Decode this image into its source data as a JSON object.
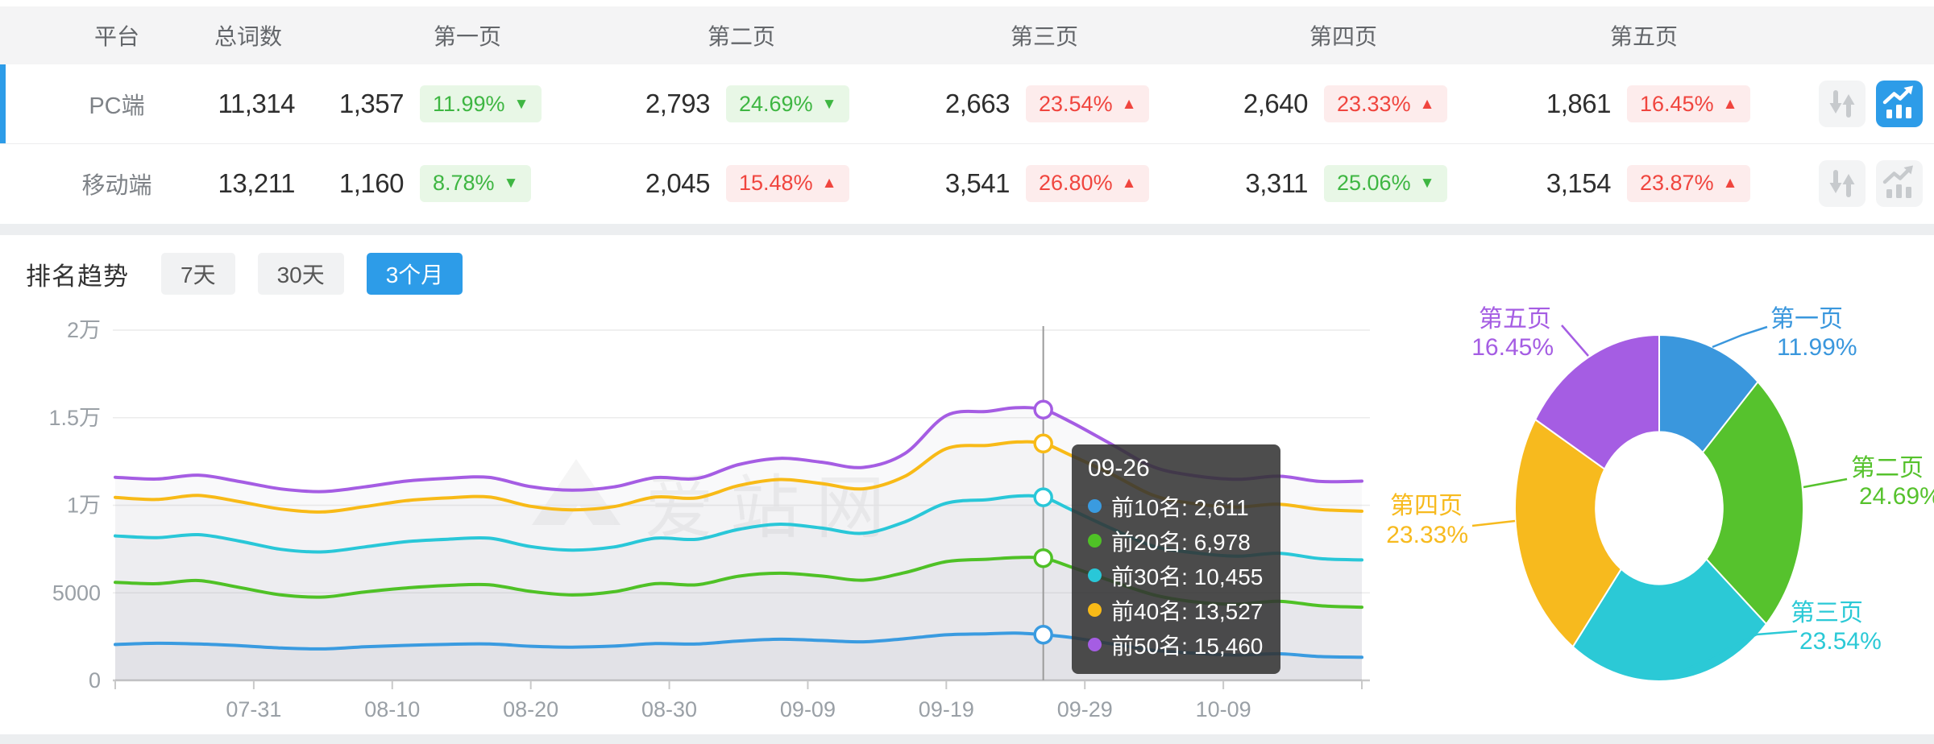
{
  "colors": {
    "accent_blue": "#2d9ce8",
    "up_red": "#f0453e",
    "up_red_bg": "#fdecec",
    "down_green": "#3eb642",
    "down_green_bg": "#e8f7e6",
    "grid_line": "#ececec",
    "axis_line": "#c9c9c9",
    "axis_text": "#9aa0a6",
    "tooltip_bg": "rgba(50,50,50,0.87)"
  },
  "table": {
    "columns": [
      "平台",
      "总词数",
      "第一页",
      "第二页",
      "第三页",
      "第四页",
      "第五页"
    ],
    "icon_buttons": [
      "sort-button",
      "chart-button"
    ],
    "rows": [
      {
        "platform": "PC端",
        "total": "11,314",
        "active": true,
        "pages": [
          {
            "count": "1,357",
            "pct": "11.99%",
            "dir": "down"
          },
          {
            "count": "2,793",
            "pct": "24.69%",
            "dir": "down"
          },
          {
            "count": "2,663",
            "pct": "23.54%",
            "dir": "up"
          },
          {
            "count": "2,640",
            "pct": "23.33%",
            "dir": "up"
          },
          {
            "count": "1,861",
            "pct": "16.45%",
            "dir": "up"
          }
        ]
      },
      {
        "platform": "移动端",
        "total": "13,211",
        "active": false,
        "pages": [
          {
            "count": "1,160",
            "pct": "8.78%",
            "dir": "down"
          },
          {
            "count": "2,045",
            "pct": "15.48%",
            "dir": "up"
          },
          {
            "count": "3,541",
            "pct": "26.80%",
            "dir": "up"
          },
          {
            "count": "3,311",
            "pct": "25.06%",
            "dir": "down"
          },
          {
            "count": "3,154",
            "pct": "23.87%",
            "dir": "up"
          }
        ]
      }
    ]
  },
  "trend": {
    "title": "排名趋势",
    "tabs": [
      {
        "label": "7天",
        "active": false
      },
      {
        "label": "30天",
        "active": false
      },
      {
        "label": "3个月",
        "active": true
      }
    ]
  },
  "watermark": "爱站网",
  "tooltip": {
    "date": "09-26",
    "rows": [
      {
        "name": "前10名",
        "value": "2,611",
        "color": "#3a9be0"
      },
      {
        "name": "前20名",
        "value": "6,978",
        "color": "#4fc126"
      },
      {
        "name": "前30名",
        "value": "10,455",
        "color": "#29c7d8"
      },
      {
        "name": "前40名",
        "value": "13,527",
        "color": "#f8ba17"
      },
      {
        "name": "前50名",
        "value": "15,460",
        "color": "#a55de3"
      }
    ]
  },
  "chart_data": [
    {
      "type": "line",
      "title": "排名趋势（3个月）",
      "ylim": [
        0,
        20000
      ],
      "grid": true,
      "legend": "none",
      "x_days": [
        0,
        3,
        6,
        9,
        12,
        15,
        18,
        21,
        24,
        27,
        30,
        33,
        36,
        39,
        42,
        45,
        48,
        51,
        54,
        57,
        60,
        63,
        65,
        67,
        69,
        72,
        75,
        78,
        81,
        84,
        87,
        90
      ],
      "x_dates": [
        "07-21",
        "07-24",
        "07-27",
        "07-30",
        "08-02",
        "08-05",
        "08-08",
        "08-11",
        "08-14",
        "08-17",
        "08-20",
        "08-23",
        "08-26",
        "08-29",
        "09-01",
        "09-04",
        "09-07",
        "09-10",
        "09-13",
        "09-16",
        "09-19",
        "09-22",
        "09-24",
        "09-26",
        "09-28",
        "10-01",
        "10-04",
        "10-07",
        "10-10",
        "10-13",
        "10-16",
        "10-19"
      ],
      "xticks": [
        {
          "label": "07-31",
          "day": 10
        },
        {
          "label": "08-10",
          "day": 20
        },
        {
          "label": "08-20",
          "day": 30
        },
        {
          "label": "08-30",
          "day": 40
        },
        {
          "label": "09-09",
          "day": 50
        },
        {
          "label": "09-19",
          "day": 60
        },
        {
          "label": "09-29",
          "day": 70
        },
        {
          "label": "10-09",
          "day": 80
        }
      ],
      "yticks": [
        {
          "label": "0",
          "value": 0
        },
        {
          "label": "5000",
          "value": 5000
        },
        {
          "label": "1万",
          "value": 10000
        },
        {
          "label": "1.5万",
          "value": 15000
        },
        {
          "label": "2万",
          "value": 20000
        }
      ],
      "crosshair": {
        "date": "09-26",
        "day": 67
      },
      "series": [
        {
          "name": "前10名",
          "color": "#3a9be0",
          "values": [
            2050,
            2120,
            2080,
            1980,
            1850,
            1800,
            1920,
            2000,
            2060,
            2080,
            1950,
            1900,
            1960,
            2100,
            2080,
            2250,
            2350,
            2280,
            2200,
            2380,
            2600,
            2660,
            2700,
            2611,
            2450,
            2080,
            1720,
            1550,
            1450,
            1520,
            1360,
            1320
          ]
        },
        {
          "name": "前20名",
          "color": "#4fc126",
          "values": [
            5600,
            5520,
            5700,
            5300,
            4880,
            4760,
            5050,
            5280,
            5420,
            5460,
            5080,
            4880,
            5060,
            5520,
            5460,
            5950,
            6120,
            5960,
            5720,
            6150,
            6780,
            6920,
            7010,
            6978,
            6480,
            5650,
            4880,
            4480,
            4350,
            4520,
            4260,
            4180
          ]
        },
        {
          "name": "前30名",
          "color": "#29c7d8",
          "values": [
            8250,
            8150,
            8320,
            7950,
            7480,
            7340,
            7620,
            7920,
            8060,
            8120,
            7640,
            7440,
            7620,
            8120,
            8060,
            8620,
            8920,
            8700,
            8400,
            9050,
            10120,
            10320,
            10520,
            10455,
            9750,
            8650,
            7650,
            7280,
            7090,
            7260,
            6950,
            6880
          ]
        },
        {
          "name": "前40名",
          "color": "#f8ba17",
          "values": [
            10450,
            10330,
            10560,
            10200,
            9780,
            9620,
            9920,
            10260,
            10420,
            10470,
            9940,
            9740,
            9920,
            10470,
            10420,
            11120,
            11470,
            11240,
            10940,
            11650,
            13230,
            13420,
            13610,
            13527,
            12850,
            11750,
            10550,
            10080,
            9900,
            10060,
            9760,
            9660
          ]
        },
        {
          "name": "前50名",
          "color": "#a55de3",
          "values": [
            11600,
            11500,
            11720,
            11350,
            10930,
            10780,
            11050,
            11380,
            11540,
            11590,
            11060,
            10860,
            11050,
            11580,
            11530,
            12320,
            12680,
            12460,
            12160,
            12950,
            15120,
            15360,
            15570,
            15460,
            14750,
            13450,
            12180,
            11680,
            11480,
            11660,
            11360,
            11380
          ]
        }
      ]
    },
    {
      "type": "pie",
      "donut": true,
      "inner_radius_ratio": 0.44,
      "start_angle_deg": 0,
      "clockwise": true,
      "segments": [
        {
          "label": "第一页",
          "pct": 11.99,
          "color": "#3a97dd"
        },
        {
          "label": "第二页",
          "pct": 24.69,
          "color": "#56c22d"
        },
        {
          "label": "第三页",
          "pct": 23.54,
          "color": "#2bc9d6"
        },
        {
          "label": "第四页",
          "pct": 23.33,
          "color": "#f7ba1e"
        },
        {
          "label": "第五页",
          "pct": 16.45,
          "color": "#a55de3"
        }
      ]
    }
  ]
}
